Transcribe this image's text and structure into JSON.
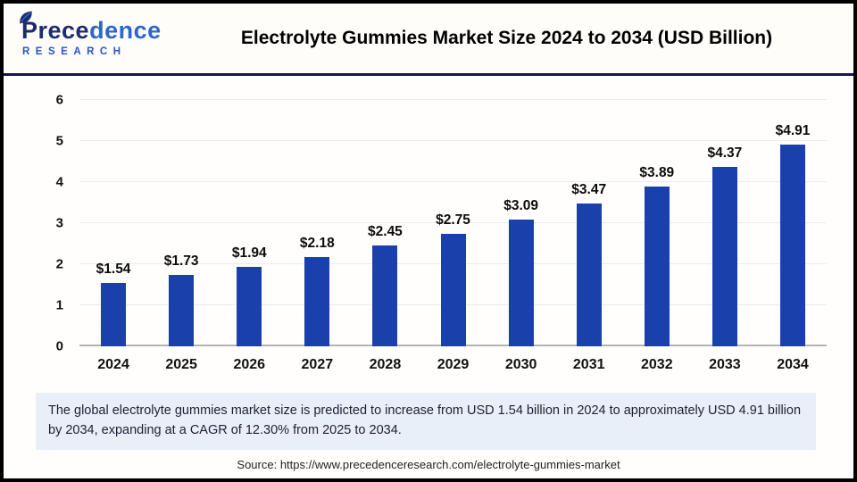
{
  "brand": {
    "name_part1": "Prece",
    "name_part2": "dence",
    "subtitle": "RESEARCH"
  },
  "header": {
    "title": "Electrolyte Gummies Market Size 2024 to 2034 (USD Billion)"
  },
  "chart_data": {
    "type": "bar",
    "title": "Electrolyte Gummies Market Size 2024 to 2034 (USD Billion)",
    "categories": [
      "2024",
      "2025",
      "2026",
      "2027",
      "2028",
      "2029",
      "2030",
      "2031",
      "2032",
      "2033",
      "2034"
    ],
    "values": [
      1.54,
      1.73,
      1.94,
      2.18,
      2.45,
      2.75,
      3.09,
      3.47,
      3.89,
      4.37,
      4.91
    ],
    "data_labels": [
      "$1.54",
      "$1.73",
      "$1.94",
      "$2.18",
      "$2.45",
      "$2.75",
      "$3.09",
      "$3.47",
      "$3.89",
      "$4.37",
      "$4.91"
    ],
    "xlabel": "",
    "ylabel": "",
    "ylim": [
      0,
      6
    ],
    "yticks": [
      0,
      1,
      2,
      3,
      4,
      5,
      6
    ],
    "grid": true,
    "legend": "none",
    "bar_color": "#1a41ab"
  },
  "note": {
    "text": "The global electrolyte gummies market size is predicted to increase from USD 1.54 billion in 2024 to approximately USD 4.91 billion by 2034, expanding at a CAGR of 12.30% from 2025 to 2034."
  },
  "source": {
    "text": "Source: https://www.precedenceresearch.com/electrolyte-gummies-market"
  },
  "colors": {
    "bar": "#1a41ab",
    "divider_navy": "#15154a",
    "note_background": "#e9eff9",
    "gridline": "#ececec",
    "axis_baseline": "#b3b3b3",
    "logo_dark": "#1d2c6e",
    "logo_blue": "#2f66cc",
    "logo_subtitle_blue": "#2456c6",
    "frame_border": "#000000"
  }
}
